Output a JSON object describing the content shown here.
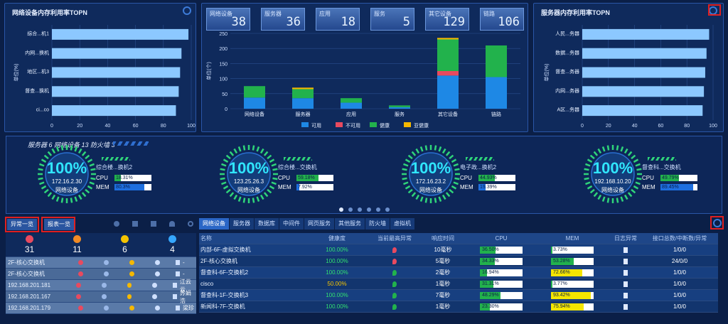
{
  "left_chart": {
    "title": "网络设备内存利用率TOPN",
    "ylabel": "单位(%)"
  },
  "right_chart": {
    "title": "服务器内存利用率TOPN",
    "ylabel": "单位(%)"
  },
  "stats": [
    {
      "label": "网络设备",
      "value": "38"
    },
    {
      "label": "服务器",
      "value": "36"
    },
    {
      "label": "应用",
      "value": "18"
    },
    {
      "label": "服务",
      "value": "5"
    },
    {
      "label": "其它设备",
      "value": "129"
    },
    {
      "label": "链路",
      "value": "106"
    }
  ],
  "chart_data": [
    {
      "type": "bar",
      "orientation": "horizontal",
      "title": "网络设备内存利用率TOPN",
      "ylabel": "单位(%)",
      "categories": [
        "综合...机1",
        "内网...换机",
        "地区...机3",
        "督查...换机",
        "ci...co"
      ],
      "values": [
        98,
        93,
        92,
        91,
        89
      ],
      "xlim": [
        0,
        100
      ],
      "xticks": [
        0,
        20,
        40,
        60,
        80,
        100
      ]
    },
    {
      "type": "bar",
      "stacked": true,
      "ylabel": "单位(个)",
      "categories": [
        "网络设备",
        "服务器",
        "应用",
        "服务",
        "其它设备",
        "链路"
      ],
      "series": [
        {
          "name": "可用",
          "color": "#1e88e5",
          "values": [
            37,
            35,
            20,
            5,
            110,
            105
          ]
        },
        {
          "name": "不可用",
          "color": "#e84a5f",
          "values": [
            0,
            0,
            0,
            0,
            15,
            0
          ]
        },
        {
          "name": "健康",
          "color": "#22b24c",
          "values": [
            38,
            30,
            15,
            6,
            105,
            105
          ]
        },
        {
          "name": "亚健康",
          "color": "#f5b800",
          "values": [
            0,
            5,
            0,
            0,
            5,
            0
          ]
        }
      ],
      "ylim": [
        0,
        250
      ],
      "yticks": [
        0,
        50,
        100,
        150,
        200,
        250
      ]
    },
    {
      "type": "bar",
      "orientation": "horizontal",
      "title": "服务器内存利用率TOPN",
      "ylabel": "单位(%)",
      "categories": [
        "人民...务器",
        "数据...务器",
        "督查...务器",
        "内网...务器",
        "A区...务器"
      ],
      "values": [
        97,
        95,
        94,
        93,
        92
      ],
      "xlim": [
        0,
        100
      ],
      "xticks": [
        0,
        20,
        40,
        60,
        80,
        100
      ]
    }
  ],
  "summary_text": "服务器 6 网络设备 13 防火墙 3",
  "cards": [
    {
      "pct": "100%",
      "ip": "172.16.2.30",
      "type": "网络设备",
      "name": "综合楼...换机2",
      "cpu": "18.31%",
      "cpu_v": 0.18,
      "mem": "80.3%",
      "mem_v": 0.8
    },
    {
      "pct": "100%",
      "ip": "123.25.26.3",
      "type": "网络设备",
      "name": "综合楼...交换机",
      "cpu": "59.18%",
      "cpu_v": 0.59,
      "mem": "7.92%",
      "mem_v": 0.08
    },
    {
      "pct": "100%",
      "ip": "172.16.23.2",
      "type": "网络设备",
      "name": "电子政...换机2",
      "cpu": "44.93%",
      "cpu_v": 0.45,
      "mem": "19.39%",
      "mem_v": 0.19
    },
    {
      "pct": "100%",
      "ip": "192.168.10.20",
      "type": "网络设备",
      "name": "督查科...交换机",
      "cpu": "49.79%",
      "cpu_v": 0.5,
      "mem": "89.45%",
      "mem_v": 0.89
    }
  ],
  "metric_labels": {
    "cpu": "CPU",
    "mem": "MEM"
  },
  "left_buttons": {
    "abnormal": "异常一览",
    "report": "报表一览"
  },
  "counts": [
    "31",
    "11",
    "6",
    "4"
  ],
  "left_rows": [
    {
      "name": "2F-核心交换机",
      "user": "-"
    },
    {
      "name": "2F-核心交换机",
      "user": "-"
    },
    {
      "name": "192.168.201.181",
      "user": "江云云"
    },
    {
      "name": "192.168.201.167",
      "user": "苏娟浩"
    },
    {
      "name": "192.168.201.179",
      "user": "梁珍"
    }
  ],
  "tabs": [
    "网络设备",
    "服务器",
    "数据库",
    "中间件",
    "网页服务",
    "其他服务",
    "防火墙",
    "虚拟机"
  ],
  "table_headers": [
    "名称",
    "健康度",
    "当前最高异常",
    "响应时间",
    "CPU",
    "MEM",
    "日志异常",
    "接口总数/中断数/异常"
  ],
  "table_rows": [
    {
      "name": "内部-6F-虚拟交换机",
      "health": "100.00%",
      "resp": "10毫秒",
      "cpu": "36.50%",
      "cpu_v": 0.365,
      "mem": "3.73%",
      "mem_v": 0.037,
      "ifc": "1/0/0",
      "alert": "#e84a5f"
    },
    {
      "name": "2F-核心交换机",
      "health": "100.00%",
      "resp": "5毫秒",
      "cpu": "34.33%",
      "cpu_v": 0.343,
      "mem": "53.28%",
      "mem_v": 0.533,
      "ifc": "24/0/0",
      "alert": "#e84a5f"
    },
    {
      "name": "督查科-6F-交换机2",
      "health": "100.00%",
      "resp": "2毫秒",
      "cpu": "16.94%",
      "cpu_v": 0.169,
      "mem": "72.66%",
      "mem_v": 0.727,
      "ifc": "1/0/0",
      "alert": "#22b24c"
    },
    {
      "name": "cisco",
      "health": "50.00%",
      "resp": "1毫秒",
      "cpu": "31.31%",
      "cpu_v": 0.313,
      "mem": "3.77%",
      "mem_v": 0.038,
      "ifc": "1/0/0",
      "alert": "#22b24c"
    },
    {
      "name": "督查科-1F-交换机3",
      "health": "100.00%",
      "resp": "7毫秒",
      "cpu": "48.29%",
      "cpu_v": 0.483,
      "mem": "93.42%",
      "mem_v": 0.934,
      "ifc": "1/0/0",
      "alert": "#22b24c"
    },
    {
      "name": "新闻科-7F-交换机",
      "health": "100.00%",
      "resp": "1毫秒",
      "cpu": "23.30%",
      "cpu_v": 0.233,
      "mem": "75.94%",
      "mem_v": 0.759,
      "ifc": "1/0/0",
      "alert": "#22b24c"
    }
  ]
}
